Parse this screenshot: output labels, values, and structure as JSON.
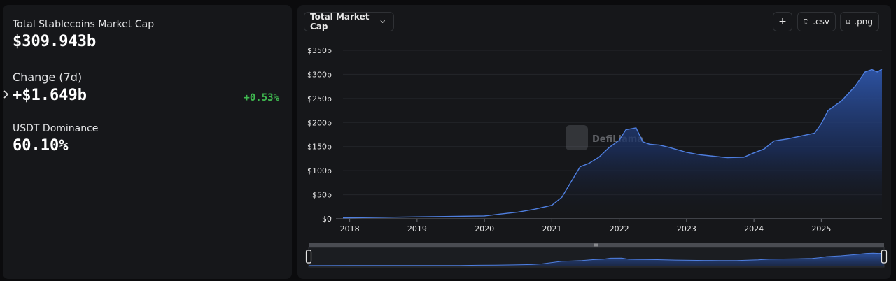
{
  "summary": {
    "market_cap_label": "Total Stablecoins Market Cap",
    "market_cap_value": "$309.943b",
    "change_label": "Change (7d)",
    "change_value": "+$1.649b",
    "change_percent": "+0.53%",
    "dominance_label": "USDT Dominance",
    "dominance_value": "60.10%"
  },
  "toolbar": {
    "metric_select": "Total Market Cap",
    "add_label": "+",
    "csv_label": ".csv",
    "png_label": ".png"
  },
  "watermark": {
    "text": "DefiLlama"
  },
  "colors": {
    "line": "#4f7fe0",
    "positive": "#3fb950",
    "panel": "#16171a"
  },
  "chart_data": {
    "type": "area",
    "title": "",
    "xlabel": "",
    "ylabel": "",
    "x_ticks": [
      "2018",
      "2019",
      "2020",
      "2021",
      "2022",
      "2023",
      "2024",
      "2025"
    ],
    "y_ticks": [
      "$0",
      "$50b",
      "$100b",
      "$150b",
      "$200b",
      "$250b",
      "$300b",
      "$350b"
    ],
    "ylim": [
      0,
      350
    ],
    "units": "billions USD",
    "grid": "horizontal",
    "legend": "none",
    "series": [
      {
        "x": [
          2017.9,
          2018.5,
          2019.0,
          2019.5,
          2020.0,
          2020.25,
          2020.5,
          2020.75,
          2021.0,
          2021.15,
          2021.3,
          2021.42,
          2021.55,
          2021.7,
          2021.85,
          2022.0,
          2022.1,
          2022.25,
          2022.35,
          2022.45,
          2022.6,
          2022.75,
          2022.9,
          2023.0,
          2023.2,
          2023.4,
          2023.6,
          2023.85,
          2024.0,
          2024.15,
          2024.3,
          2024.5,
          2024.7,
          2024.9,
          2025.0,
          2025.1,
          2025.3,
          2025.5,
          2025.65,
          2025.75,
          2025.83,
          2025.9
        ],
        "y": [
          2,
          3,
          4,
          5,
          6,
          10,
          14,
          20,
          28,
          45,
          80,
          108,
          115,
          128,
          148,
          163,
          185,
          189,
          160,
          155,
          153,
          148,
          142,
          138,
          133,
          130,
          127,
          128,
          137,
          145,
          162,
          166,
          172,
          178,
          198,
          225,
          245,
          275,
          305,
          310,
          305,
          311
        ]
      }
    ],
    "range_selector": {
      "start": 2017.9,
      "end": 2025.9
    }
  }
}
